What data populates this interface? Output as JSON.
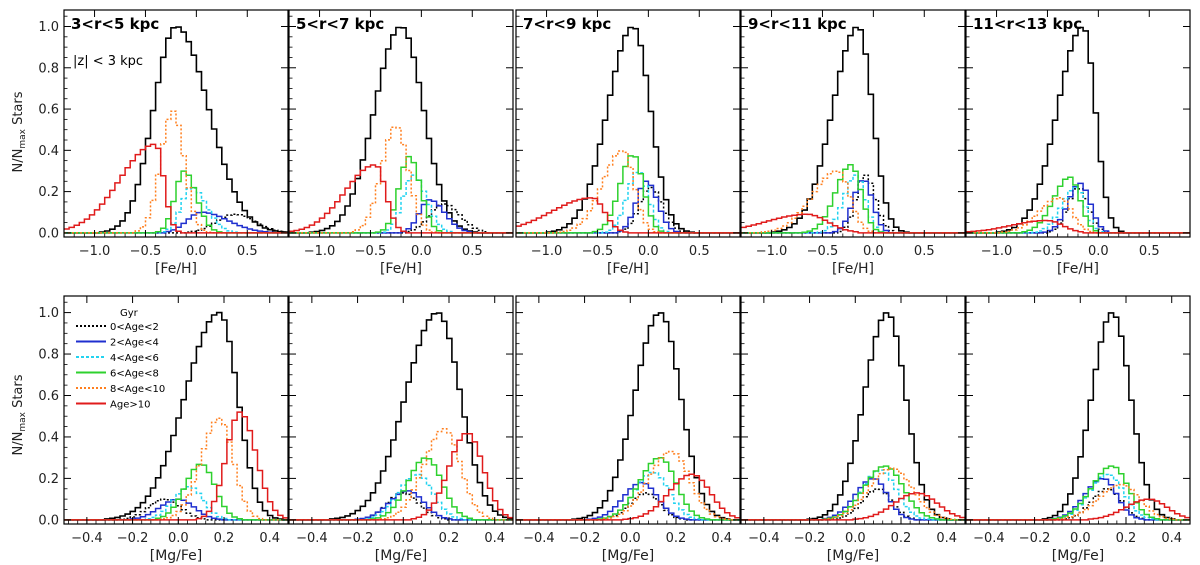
{
  "ylabel_main": "N/N",
  "ylabel_sub": "max",
  "ylabel_end": " Stars",
  "z_label": "|z| < 3 kpc",
  "legend": {
    "title": "Gyr",
    "entries": [
      {
        "label": "0<Age<2",
        "color": "#000000",
        "dash": "2,2"
      },
      {
        "label": "2<Age<4",
        "color": "#1f2fcf",
        "dash": ""
      },
      {
        "label": "4<Age<6",
        "color": "#22d3f0",
        "dash": "3,2"
      },
      {
        "label": "6<Age<8",
        "color": "#2ed12e",
        "dash": ""
      },
      {
        "label": "8<Age<10",
        "color": "#ff7f1e",
        "dash": "2,2"
      },
      {
        "label": "Age>10",
        "color": "#e01b1b",
        "dash": ""
      }
    ]
  },
  "chart_data": [
    {
      "type": "histogram",
      "row": "fe",
      "title": "3<r<5 kpc",
      "xlabel": "[Fe/H]",
      "xlim": [
        -1.3,
        0.9
      ],
      "ylim": [
        -0.02,
        1.08
      ],
      "xticks": [
        -1.0,
        -0.5,
        0.0,
        0.5
      ],
      "xtick_labels": [
        "−1.0",
        "−0.5",
        "0.0",
        "0.5"
      ],
      "yticks": [
        0.0,
        0.2,
        0.4,
        0.6,
        0.8,
        1.0
      ],
      "ytick_labels": [
        "0.0",
        "0.2",
        "0.4",
        "0.6",
        "0.8",
        "1.0"
      ],
      "series": [
        {
          "name": "all",
          "color": "#000000",
          "peak": -0.2,
          "height": 1.0,
          "sl": 0.22,
          "sr": 0.32
        },
        {
          "name": "0<Age<2",
          "color": "#000000",
          "dash": "2,2",
          "peak": 0.38,
          "height": 0.09,
          "sl": 0.18,
          "sr": 0.2
        },
        {
          "name": "2<Age<4",
          "color": "#1f2fcf",
          "peak": 0.05,
          "height": 0.1,
          "sl": 0.14,
          "sr": 0.26
        },
        {
          "name": "4<Age<6",
          "color": "#22d3f0",
          "dash": "3,2",
          "peak": -0.05,
          "height": 0.22,
          "sl": 0.1,
          "sr": 0.15
        },
        {
          "name": "6<Age<8",
          "color": "#2ed12e",
          "peak": -0.12,
          "height": 0.3,
          "sl": 0.09,
          "sr": 0.12
        },
        {
          "name": "8<Age<10",
          "color": "#ff7f1e",
          "dash": "2,2",
          "peak": -0.23,
          "height": 0.59,
          "sl": 0.12,
          "sr": 0.11
        },
        {
          "name": "Age>10",
          "color": "#e01b1b",
          "peak": -0.4,
          "height": 0.43,
          "sl": 0.35,
          "sr": 0.08
        }
      ]
    },
    {
      "type": "histogram",
      "row": "fe",
      "title": "5<r<7 kpc",
      "xlabel": "[Fe/H]",
      "xlim": [
        -1.3,
        0.9
      ],
      "ylim": [
        -0.02,
        1.08
      ],
      "xticks": [
        -1.0,
        -0.5,
        0.0,
        0.5
      ],
      "xtick_labels": [
        "−1.0",
        "−0.5",
        "0.0",
        "0.5"
      ],
      "yticks": [
        0.0,
        0.2,
        0.4,
        0.6,
        0.8,
        1.0
      ],
      "ytick_labels": [
        "",
        "",
        "",
        "",
        "",
        ""
      ],
      "series": [
        {
          "name": "all",
          "color": "#000000",
          "peak": -0.2,
          "height": 1.0,
          "sl": 0.26,
          "sr": 0.22
        },
        {
          "name": "0<Age<2",
          "color": "#000000",
          "dash": "2,2",
          "peak": 0.22,
          "height": 0.14,
          "sl": 0.14,
          "sr": 0.16
        },
        {
          "name": "2<Age<4",
          "color": "#1f2fcf",
          "peak": 0.08,
          "height": 0.16,
          "sl": 0.1,
          "sr": 0.15
        },
        {
          "name": "4<Age<6",
          "color": "#22d3f0",
          "dash": "3,2",
          "peak": -0.08,
          "height": 0.28,
          "sl": 0.1,
          "sr": 0.13
        },
        {
          "name": "6<Age<8",
          "color": "#2ed12e",
          "peak": -0.12,
          "height": 0.37,
          "sl": 0.1,
          "sr": 0.11
        },
        {
          "name": "8<Age<10",
          "color": "#ff7f1e",
          "dash": "2,2",
          "peak": -0.25,
          "height": 0.52,
          "sl": 0.14,
          "sr": 0.12
        },
        {
          "name": "Age>10",
          "color": "#e01b1b",
          "peak": -0.45,
          "height": 0.33,
          "sl": 0.3,
          "sr": 0.1
        }
      ]
    },
    {
      "type": "histogram",
      "row": "fe",
      "title": "7<r<9 kpc",
      "xlabel": "[Fe/H]",
      "xlim": [
        -1.3,
        0.9
      ],
      "ylim": [
        -0.02,
        1.08
      ],
      "xticks": [
        -1.0,
        -0.5,
        0.0,
        0.5
      ],
      "xtick_labels": [
        "−1.0",
        "−0.5",
        "0.0",
        "0.5"
      ],
      "yticks": [
        0.0,
        0.2,
        0.4,
        0.6,
        0.8,
        1.0
      ],
      "ytick_labels": [
        "",
        "",
        "",
        "",
        "",
        ""
      ],
      "series": [
        {
          "name": "all",
          "color": "#000000",
          "peak": -0.15,
          "height": 1.0,
          "sl": 0.25,
          "sr": 0.17
        },
        {
          "name": "0<Age<2",
          "color": "#000000",
          "dash": "2,2",
          "peak": 0.02,
          "height": 0.22,
          "sl": 0.11,
          "sr": 0.12
        },
        {
          "name": "2<Age<4",
          "color": "#1f2fcf",
          "peak": -0.02,
          "height": 0.25,
          "sl": 0.1,
          "sr": 0.11
        },
        {
          "name": "4<Age<6",
          "color": "#22d3f0",
          "dash": "3,2",
          "peak": -0.1,
          "height": 0.3,
          "sl": 0.11,
          "sr": 0.1
        },
        {
          "name": "6<Age<8",
          "color": "#2ed12e",
          "peak": -0.15,
          "height": 0.38,
          "sl": 0.13,
          "sr": 0.1
        },
        {
          "name": "8<Age<10",
          "color": "#ff7f1e",
          "dash": "2,2",
          "peak": -0.25,
          "height": 0.4,
          "sl": 0.2,
          "sr": 0.11
        },
        {
          "name": "Age>10",
          "color": "#e01b1b",
          "peak": -0.55,
          "height": 0.17,
          "sl": 0.4,
          "sr": 0.12
        }
      ]
    },
    {
      "type": "histogram",
      "row": "fe",
      "title": "9<r<11 kpc",
      "xlabel": "[Fe/H]",
      "xlim": [
        -1.3,
        0.9
      ],
      "ylim": [
        -0.02,
        1.08
      ],
      "xticks": [
        -1.0,
        -0.5,
        0.0,
        0.5
      ],
      "xtick_labels": [
        "−1.0",
        "−0.5",
        "0.0",
        "0.5"
      ],
      "yticks": [
        0.0,
        0.2,
        0.4,
        0.6,
        0.8,
        1.0
      ],
      "ytick_labels": [
        "",
        "",
        "",
        "",
        "",
        ""
      ],
      "series": [
        {
          "name": "all",
          "color": "#000000",
          "peak": -0.15,
          "height": 1.0,
          "sl": 0.25,
          "sr": 0.14
        },
        {
          "name": "0<Age<2",
          "color": "#000000",
          "dash": "2,2",
          "peak": -0.08,
          "height": 0.28,
          "sl": 0.09,
          "sr": 0.1
        },
        {
          "name": "2<Age<4",
          "color": "#1f2fcf",
          "peak": -0.1,
          "height": 0.26,
          "sl": 0.1,
          "sr": 0.09
        },
        {
          "name": "4<Age<6",
          "color": "#22d3f0",
          "dash": "3,2",
          "peak": -0.17,
          "height": 0.28,
          "sl": 0.12,
          "sr": 0.09
        },
        {
          "name": "6<Age<8",
          "color": "#2ed12e",
          "peak": -0.22,
          "height": 0.33,
          "sl": 0.15,
          "sr": 0.1
        },
        {
          "name": "8<Age<10",
          "color": "#ff7f1e",
          "dash": "2,2",
          "peak": -0.35,
          "height": 0.3,
          "sl": 0.25,
          "sr": 0.12
        },
        {
          "name": "Age>10",
          "color": "#e01b1b",
          "peak": -0.65,
          "height": 0.09,
          "sl": 0.4,
          "sr": 0.2
        }
      ]
    },
    {
      "type": "histogram",
      "row": "fe",
      "title": "11<r<13 kpc",
      "xlabel": "[Fe/H]",
      "xlim": [
        -1.3,
        0.9
      ],
      "ylim": [
        -0.02,
        1.08
      ],
      "xticks": [
        -1.0,
        -0.5,
        0.0,
        0.5
      ],
      "xtick_labels": [
        "−1.0",
        "−0.5",
        "0.0",
        "0.5"
      ],
      "yticks": [
        0.0,
        0.2,
        0.4,
        0.6,
        0.8,
        1.0
      ],
      "ytick_labels": [
        "",
        "",
        "",
        "",
        "",
        ""
      ],
      "series": [
        {
          "name": "all",
          "color": "#000000",
          "peak": -0.15,
          "height": 1.0,
          "sl": 0.25,
          "sr": 0.12
        },
        {
          "name": "0<Age<2",
          "color": "#000000",
          "dash": "2,2",
          "peak": -0.2,
          "height": 0.22,
          "sl": 0.1,
          "sr": 0.1
        },
        {
          "name": "2<Age<4",
          "color": "#1f2fcf",
          "peak": -0.18,
          "height": 0.24,
          "sl": 0.12,
          "sr": 0.1
        },
        {
          "name": "4<Age<6",
          "color": "#22d3f0",
          "dash": "3,2",
          "peak": -0.22,
          "height": 0.22,
          "sl": 0.14,
          "sr": 0.09
        },
        {
          "name": "6<Age<8",
          "color": "#2ed12e",
          "peak": -0.28,
          "height": 0.27,
          "sl": 0.16,
          "sr": 0.1
        },
        {
          "name": "8<Age<10",
          "color": "#ff7f1e",
          "dash": "2,2",
          "peak": -0.38,
          "height": 0.17,
          "sl": 0.2,
          "sr": 0.12
        },
        {
          "name": "Age>10",
          "color": "#e01b1b",
          "peak": -0.5,
          "height": 0.06,
          "sl": 0.35,
          "sr": 0.15
        }
      ]
    },
    {
      "type": "histogram",
      "row": "mg",
      "title": "",
      "xlabel": "[Mg/Fe]",
      "xlim": [
        -0.5,
        0.48
      ],
      "ylim": [
        -0.02,
        1.08
      ],
      "xticks": [
        -0.4,
        -0.2,
        0.0,
        0.2,
        0.4
      ],
      "xtick_labels": [
        "−0.4",
        "−0.2",
        "0.0",
        "0.2",
        "0.4"
      ],
      "yticks": [
        0.0,
        0.2,
        0.4,
        0.6,
        0.8,
        1.0
      ],
      "ytick_labels": [
        "0.0",
        "0.2",
        "0.4",
        "0.6",
        "0.8",
        "1.0"
      ],
      "series": [
        {
          "name": "all",
          "color": "#000000",
          "peak": 0.18,
          "height": 1.0,
          "sl": 0.15,
          "sr": 0.08
        },
        {
          "name": "0<Age<2",
          "color": "#000000",
          "dash": "2,2",
          "peak": -0.06,
          "height": 0.1,
          "sl": 0.07,
          "sr": 0.07
        },
        {
          "name": "2<Age<4",
          "color": "#1f2fcf",
          "peak": 0.0,
          "height": 0.1,
          "sl": 0.08,
          "sr": 0.07
        },
        {
          "name": "4<Age<6",
          "color": "#22d3f0",
          "dash": "3,2",
          "peak": 0.05,
          "height": 0.16,
          "sl": 0.07,
          "sr": 0.06
        },
        {
          "name": "6<Age<8",
          "color": "#2ed12e",
          "peak": 0.1,
          "height": 0.27,
          "sl": 0.07,
          "sr": 0.06
        },
        {
          "name": "8<Age<10",
          "color": "#ff7f1e",
          "dash": "2,2",
          "peak": 0.18,
          "height": 0.49,
          "sl": 0.08,
          "sr": 0.06
        },
        {
          "name": "Age>10",
          "color": "#e01b1b",
          "peak": 0.27,
          "height": 0.52,
          "sl": 0.06,
          "sr": 0.07
        }
      ]
    },
    {
      "type": "histogram",
      "row": "mg",
      "title": "",
      "xlabel": "[Mg/Fe]",
      "xlim": [
        -0.5,
        0.48
      ],
      "ylim": [
        -0.02,
        1.08
      ],
      "xticks": [
        -0.4,
        -0.2,
        0.0,
        0.2,
        0.4
      ],
      "xtick_labels": [
        "−0.4",
        "−0.2",
        "0.0",
        "0.2",
        "0.4"
      ],
      "yticks": [
        0.0,
        0.2,
        0.4,
        0.6,
        0.8,
        1.0
      ],
      "ytick_labels": [
        "",
        "",
        "",
        "",
        "",
        ""
      ],
      "series": [
        {
          "name": "all",
          "color": "#000000",
          "peak": 0.15,
          "height": 1.0,
          "sl": 0.14,
          "sr": 0.1
        },
        {
          "name": "0<Age<2",
          "color": "#000000",
          "dash": "2,2",
          "peak": 0.0,
          "height": 0.13,
          "sl": 0.07,
          "sr": 0.07
        },
        {
          "name": "2<Age<4",
          "color": "#1f2fcf",
          "peak": 0.02,
          "height": 0.14,
          "sl": 0.08,
          "sr": 0.07
        },
        {
          "name": "4<Age<6",
          "color": "#22d3f0",
          "dash": "3,2",
          "peak": 0.06,
          "height": 0.22,
          "sl": 0.08,
          "sr": 0.07
        },
        {
          "name": "6<Age<8",
          "color": "#2ed12e",
          "peak": 0.1,
          "height": 0.3,
          "sl": 0.08,
          "sr": 0.07
        },
        {
          "name": "8<Age<10",
          "color": "#ff7f1e",
          "dash": "2,2",
          "peak": 0.18,
          "height": 0.44,
          "sl": 0.09,
          "sr": 0.07
        },
        {
          "name": "Age>10",
          "color": "#e01b1b",
          "peak": 0.28,
          "height": 0.42,
          "sl": 0.08,
          "sr": 0.07
        }
      ]
    },
    {
      "type": "histogram",
      "row": "mg",
      "title": "",
      "xlabel": "[Mg/Fe]",
      "xlim": [
        -0.5,
        0.48
      ],
      "ylim": [
        -0.02,
        1.08
      ],
      "xticks": [
        -0.4,
        -0.2,
        0.0,
        0.2,
        0.4
      ],
      "xtick_labels": [
        "−0.4",
        "−0.2",
        "0.0",
        "0.2",
        "0.4"
      ],
      "yticks": [
        0.0,
        0.2,
        0.4,
        0.6,
        0.8,
        1.0
      ],
      "ytick_labels": [
        "",
        "",
        "",
        "",
        "",
        ""
      ],
      "series": [
        {
          "name": "all",
          "color": "#000000",
          "peak": 0.13,
          "height": 1.0,
          "sl": 0.11,
          "sr": 0.09
        },
        {
          "name": "0<Age<2",
          "color": "#000000",
          "dash": "2,2",
          "peak": 0.07,
          "height": 0.13,
          "sl": 0.07,
          "sr": 0.06
        },
        {
          "name": "2<Age<4",
          "color": "#1f2fcf",
          "peak": 0.05,
          "height": 0.18,
          "sl": 0.08,
          "sr": 0.07
        },
        {
          "name": "4<Age<6",
          "color": "#22d3f0",
          "dash": "3,2",
          "peak": 0.1,
          "height": 0.23,
          "sl": 0.08,
          "sr": 0.07
        },
        {
          "name": "6<Age<8",
          "color": "#2ed12e",
          "peak": 0.13,
          "height": 0.3,
          "sl": 0.09,
          "sr": 0.07
        },
        {
          "name": "8<Age<10",
          "color": "#ff7f1e",
          "dash": "2,2",
          "peak": 0.18,
          "height": 0.33,
          "sl": 0.1,
          "sr": 0.08
        },
        {
          "name": "Age>10",
          "color": "#e01b1b",
          "peak": 0.27,
          "height": 0.22,
          "sl": 0.1,
          "sr": 0.08
        }
      ]
    },
    {
      "type": "histogram",
      "row": "mg",
      "title": "",
      "xlabel": "[Mg/Fe]",
      "xlim": [
        -0.5,
        0.48
      ],
      "ylim": [
        -0.02,
        1.08
      ],
      "xticks": [
        -0.4,
        -0.2,
        0.0,
        0.2,
        0.4
      ],
      "xtick_labels": [
        "−0.4",
        "−0.2",
        "0.0",
        "0.2",
        "0.4"
      ],
      "yticks": [
        0.0,
        0.2,
        0.4,
        0.6,
        0.8,
        1.0
      ],
      "ytick_labels": [
        "",
        "",
        "",
        "",
        "",
        ""
      ],
      "series": [
        {
          "name": "all",
          "color": "#000000",
          "peak": 0.14,
          "height": 1.0,
          "sl": 0.1,
          "sr": 0.08
        },
        {
          "name": "0<Age<2",
          "color": "#000000",
          "dash": "2,2",
          "peak": 0.1,
          "height": 0.15,
          "sl": 0.07,
          "sr": 0.06
        },
        {
          "name": "2<Age<4",
          "color": "#1f2fcf",
          "peak": 0.08,
          "height": 0.2,
          "sl": 0.08,
          "sr": 0.06
        },
        {
          "name": "4<Age<6",
          "color": "#22d3f0",
          "dash": "3,2",
          "peak": 0.11,
          "height": 0.24,
          "sl": 0.08,
          "sr": 0.07
        },
        {
          "name": "6<Age<8",
          "color": "#2ed12e",
          "peak": 0.13,
          "height": 0.26,
          "sl": 0.09,
          "sr": 0.08
        },
        {
          "name": "8<Age<10",
          "color": "#ff7f1e",
          "dash": "2,2",
          "peak": 0.16,
          "height": 0.25,
          "sl": 0.1,
          "sr": 0.09
        },
        {
          "name": "Age>10",
          "color": "#e01b1b",
          "peak": 0.27,
          "height": 0.13,
          "sl": 0.1,
          "sr": 0.09
        }
      ]
    },
    {
      "type": "histogram",
      "row": "mg",
      "title": "",
      "xlabel": "[Mg/Fe]",
      "xlim": [
        -0.5,
        0.48
      ],
      "ylim": [
        -0.02,
        1.08
      ],
      "xticks": [
        -0.4,
        -0.2,
        0.0,
        0.2,
        0.4
      ],
      "xtick_labels": [
        "−0.4",
        "−0.2",
        "0.0",
        "0.2",
        "0.4"
      ],
      "yticks": [
        0.0,
        0.2,
        0.4,
        0.6,
        0.8,
        1.0
      ],
      "ytick_labels": [
        "",
        "",
        "",
        "",
        "",
        ""
      ],
      "series": [
        {
          "name": "all",
          "color": "#000000",
          "peak": 0.14,
          "height": 1.0,
          "sl": 0.09,
          "sr": 0.08
        },
        {
          "name": "0<Age<2",
          "color": "#000000",
          "dash": "2,2",
          "peak": 0.12,
          "height": 0.15,
          "sl": 0.07,
          "sr": 0.06
        },
        {
          "name": "2<Age<4",
          "color": "#1f2fcf",
          "peak": 0.1,
          "height": 0.2,
          "sl": 0.08,
          "sr": 0.06
        },
        {
          "name": "4<Age<6",
          "color": "#22d3f0",
          "dash": "3,2",
          "peak": 0.12,
          "height": 0.22,
          "sl": 0.08,
          "sr": 0.07
        },
        {
          "name": "6<Age<8",
          "color": "#2ed12e",
          "peak": 0.14,
          "height": 0.26,
          "sl": 0.09,
          "sr": 0.07
        },
        {
          "name": "8<Age<10",
          "color": "#ff7f1e",
          "dash": "2,2",
          "peak": 0.18,
          "height": 0.17,
          "sl": 0.1,
          "sr": 0.08
        },
        {
          "name": "Age>10",
          "color": "#e01b1b",
          "peak": 0.3,
          "height": 0.1,
          "sl": 0.1,
          "sr": 0.08
        }
      ]
    }
  ]
}
